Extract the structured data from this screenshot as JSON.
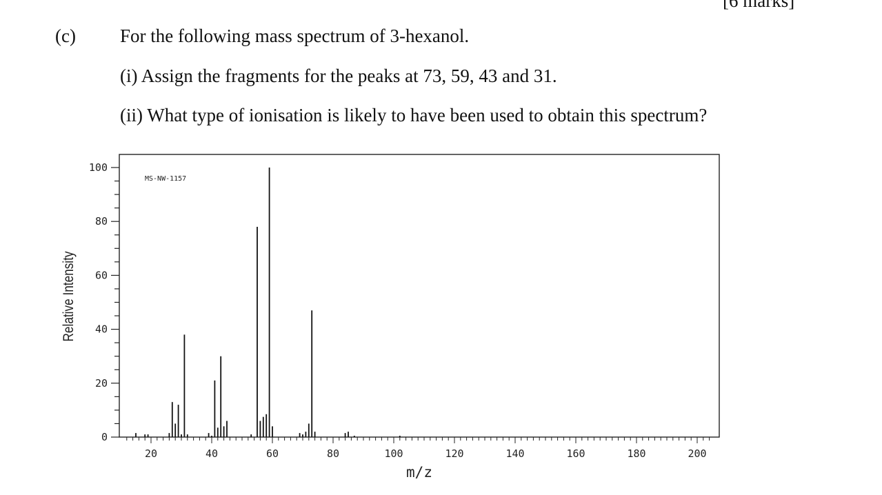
{
  "header": {
    "corner_text": "[6 marks]"
  },
  "question": {
    "part_label": "(c)",
    "main": "For the following mass spectrum of 3-hexanol.",
    "sub_i": "(i) Assign the fragments for the peaks at 73, 59, 43 and 31.",
    "sub_ii": "(ii) What type of ionisation is likely to have been used to obtain this spectrum?"
  },
  "chart_data": {
    "type": "bar",
    "spectrum_id": "MS-NW-1157",
    "xlabel": "m/z",
    "ylabel": "Relative Intensity",
    "xlim": [
      10,
      205
    ],
    "ylim": [
      0,
      100
    ],
    "x_ticks": [
      20,
      40,
      60,
      80,
      100,
      120,
      140,
      160,
      180,
      200
    ],
    "y_ticks": [
      0,
      20,
      40,
      60,
      80,
      100
    ],
    "x_tick_labels": [
      "20",
      "40",
      "60",
      "80",
      "100",
      "120",
      "140",
      "160",
      "180",
      "200"
    ],
    "y_tick_labels": [
      "0",
      "20",
      "40",
      "60",
      "80",
      "100"
    ],
    "grid": false,
    "peaks": [
      {
        "mz": 15,
        "intensity": 1.5
      },
      {
        "mz": 18,
        "intensity": 1
      },
      {
        "mz": 19,
        "intensity": 1
      },
      {
        "mz": 26,
        "intensity": 1.5
      },
      {
        "mz": 27,
        "intensity": 13
      },
      {
        "mz": 28,
        "intensity": 5
      },
      {
        "mz": 29,
        "intensity": 12
      },
      {
        "mz": 30,
        "intensity": 1
      },
      {
        "mz": 31,
        "intensity": 38
      },
      {
        "mz": 32,
        "intensity": 1
      },
      {
        "mz": 39,
        "intensity": 1.5
      },
      {
        "mz": 40,
        "intensity": 0.5
      },
      {
        "mz": 41,
        "intensity": 21
      },
      {
        "mz": 42,
        "intensity": 3.5
      },
      {
        "mz": 43,
        "intensity": 30
      },
      {
        "mz": 44,
        "intensity": 4
      },
      {
        "mz": 45,
        "intensity": 6
      },
      {
        "mz": 53,
        "intensity": 1
      },
      {
        "mz": 55,
        "intensity": 78
      },
      {
        "mz": 56,
        "intensity": 6
      },
      {
        "mz": 57,
        "intensity": 7.5
      },
      {
        "mz": 58,
        "intensity": 8.5
      },
      {
        "mz": 59,
        "intensity": 100
      },
      {
        "mz": 60,
        "intensity": 4
      },
      {
        "mz": 69,
        "intensity": 1.5
      },
      {
        "mz": 70,
        "intensity": 1
      },
      {
        "mz": 71,
        "intensity": 2
      },
      {
        "mz": 72,
        "intensity": 5
      },
      {
        "mz": 73,
        "intensity": 47
      },
      {
        "mz": 74,
        "intensity": 2
      },
      {
        "mz": 84,
        "intensity": 1.5
      },
      {
        "mz": 85,
        "intensity": 2
      },
      {
        "mz": 87,
        "intensity": 0.5
      },
      {
        "mz": 102,
        "intensity": 0.5
      }
    ]
  }
}
